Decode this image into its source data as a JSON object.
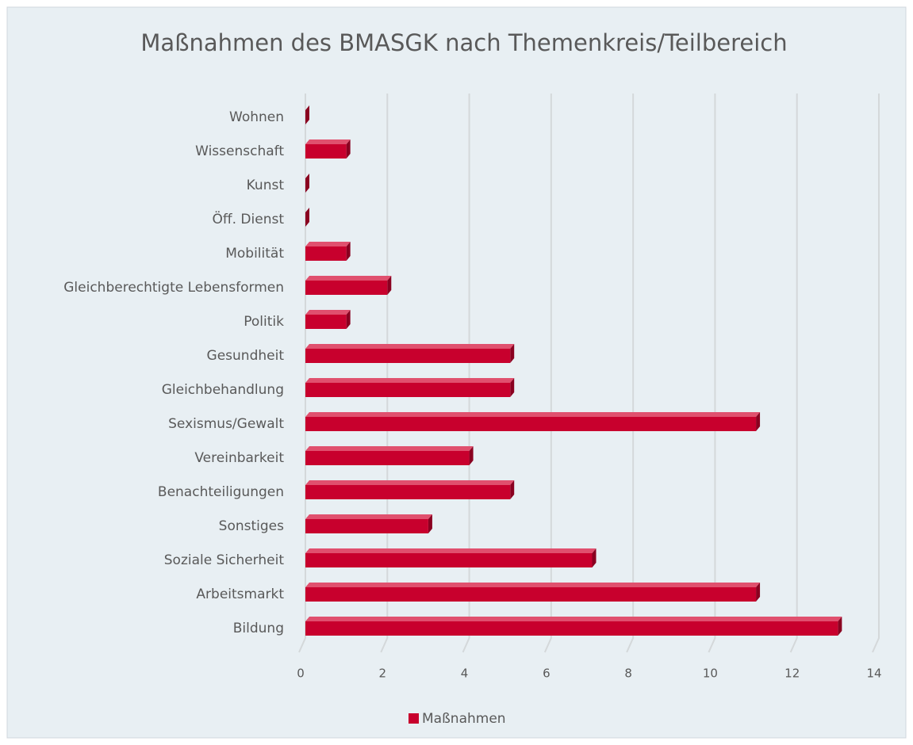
{
  "chart_data": {
    "type": "bar3d_horizontal",
    "title": "Maßnahmen des BMASGK nach Themenkreis/Teilbereich",
    "categories": [
      "Wohnen",
      "Wissenschaft",
      "Kunst",
      "Öff. Dienst",
      "Mobilität",
      "Gleichberechtigte Lebensformen",
      "Politik",
      "Gesundheit",
      "Gleichbehandlung",
      "Sexismus/Gewalt",
      "Vereinbarkeit",
      "Benachteiligungen",
      "Sonstiges",
      "Soziale Sicherheit",
      "Arbeitsmarkt",
      "Bildung"
    ],
    "series": [
      {
        "name": "Maßnahmen",
        "color": "#c8002d",
        "values": [
          0,
          1,
          0,
          0,
          1,
          2,
          1,
          5,
          5,
          11,
          4,
          5,
          3,
          7,
          11,
          13
        ]
      }
    ],
    "xlim": [
      0,
      14
    ],
    "xticks": [
      0,
      2,
      4,
      6,
      8,
      10,
      12,
      14
    ],
    "grid": true,
    "legend": "bottom"
  }
}
